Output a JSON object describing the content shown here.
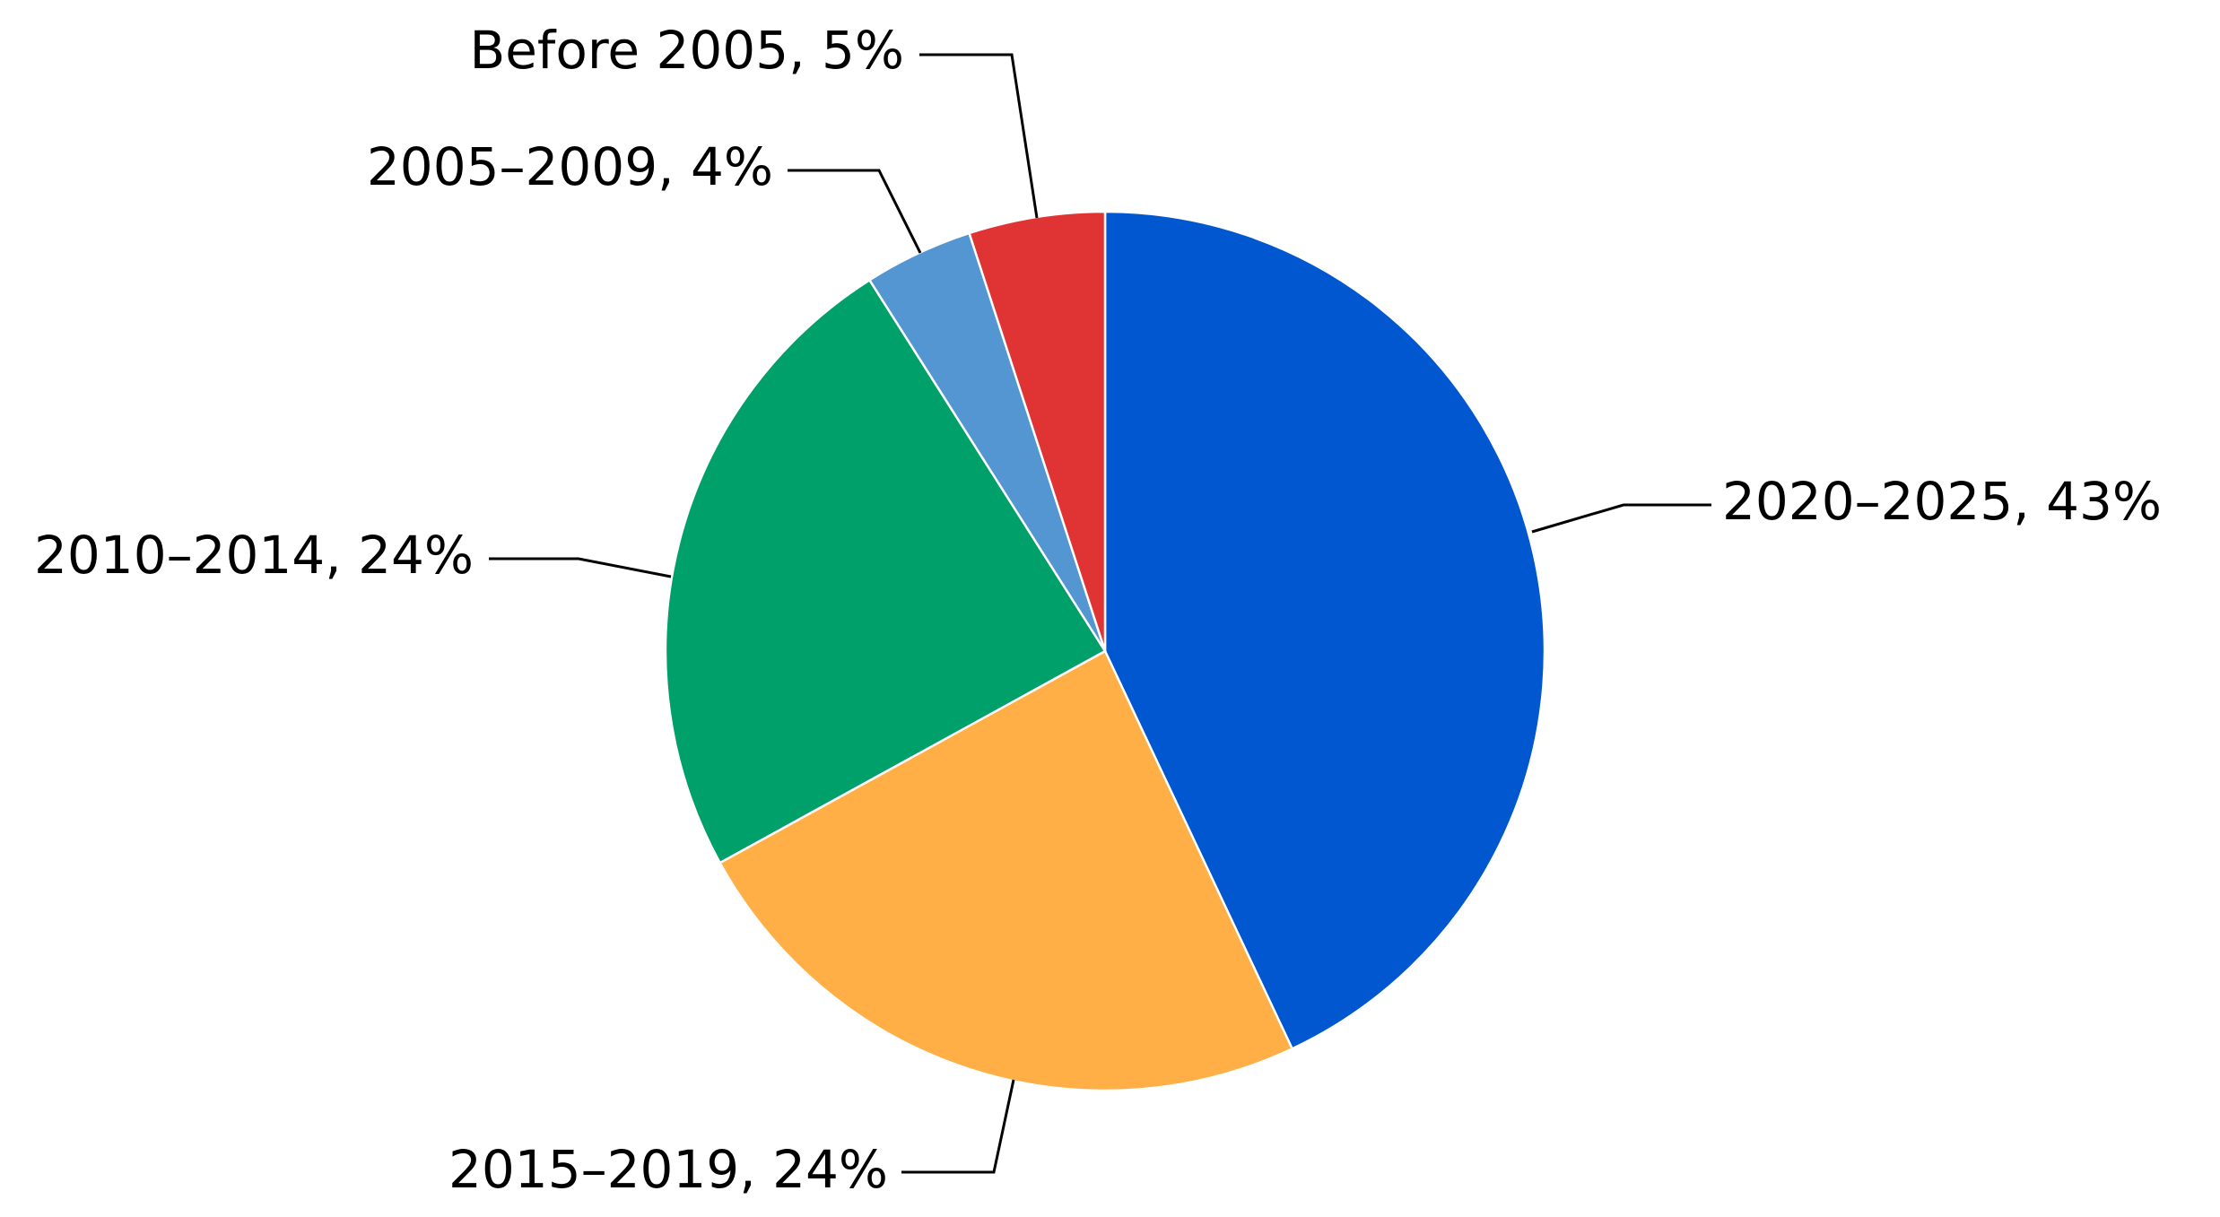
{
  "chart_data": {
    "type": "pie",
    "title": "",
    "start_angle_deg": 0,
    "direction": "clockwise",
    "slices": [
      {
        "category": "2020–2025",
        "value": 43,
        "label": "2020–2025, 43%",
        "color": "#0057D0"
      },
      {
        "category": "2015–2019",
        "value": 24,
        "label": "2015–2019, 24%",
        "color": "#FFAF45"
      },
      {
        "category": "2010–2014",
        "value": 24,
        "label": "2010–2014, 24%",
        "color": "#00A06A"
      },
      {
        "category": "2005–2009",
        "value": 4,
        "label": "2005–2009, 4%",
        "color": "#5396D2"
      },
      {
        "category": "Before 2005",
        "value": 5,
        "label": "Before 2005, 5%",
        "color": "#E03434"
      }
    ],
    "legend": "none"
  }
}
